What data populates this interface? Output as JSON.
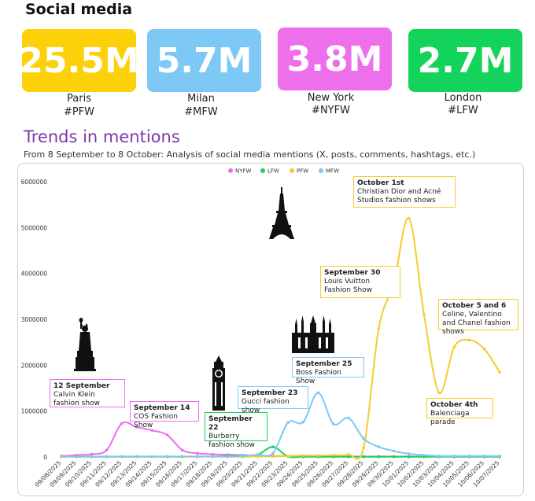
{
  "header": {
    "title": "Social media"
  },
  "tiles": [
    {
      "value": "25.5M",
      "city": "Paris",
      "tag": "#PFW",
      "color": "#FDD10A"
    },
    {
      "value": "5.7M",
      "city": "Milan",
      "tag": "#MFW",
      "color": "#7DC8F5"
    },
    {
      "value": "3.8M",
      "city": "New York",
      "tag": "#NYFW",
      "color": "#EE6FEC"
    },
    {
      "value": "2.7M",
      "city": "London",
      "tag": "#LFW",
      "color": "#14D35A"
    }
  ],
  "trends": {
    "title": "Trends in mentions",
    "subtitle": "From  8 September to 8 October: Analysis of social media mentions (X, posts, comments, hashtags, etc.)"
  },
  "annotations": [
    {
      "title": "12 September",
      "text": "Calvin Klein fashion show",
      "color": "#EE6FEC"
    },
    {
      "title": "September 14",
      "text": "COS Fashion Show",
      "color": "#EE6FEC"
    },
    {
      "title": "September 22",
      "text": "Burberry fashion show",
      "color": "#14D35A"
    },
    {
      "title": "September 23",
      "text": "Gucci fashion show",
      "color": "#7DC8F5"
    },
    {
      "title": "September 25",
      "text": "Boss Fashion Show",
      "color": "#7DC8F5"
    },
    {
      "title": "September 30",
      "text": "Louis Vuitton Fashion Show",
      "color": "#F5CC2E"
    },
    {
      "title": "October 1st",
      "text": "Christian Dior and Acné Studios fashion shows",
      "color": "#F5CC2E"
    },
    {
      "title": "October 5 and 6",
      "text": "Celine, Valentino and Chanel fashion shows",
      "color": "#F5CC2E"
    },
    {
      "title": "October 4th",
      "text": "Balenciaga parade",
      "color": "#F5CC2E"
    }
  ],
  "icons": [
    "eiffel-tower-icon",
    "statue-of-liberty-icon",
    "big-ben-icon",
    "milan-cathedral-icon"
  ],
  "chart_data": {
    "type": "line",
    "x": [
      "09/08/2025",
      "09/09/2025",
      "09/10/2025",
      "09/11/2025",
      "09/12/2025",
      "09/13/2025",
      "09/14/2025",
      "09/15/2025",
      "09/16/2025",
      "09/17/2025",
      "09/18/2025",
      "09/19/2025",
      "09/20/2025",
      "09/21/2025",
      "09/22/2025",
      "09/23/2025",
      "09/24/2025",
      "09/25/2025",
      "09/26/2025",
      "09/27/2025",
      "09/28/2025",
      "09/29/2025",
      "09/30/2025",
      "10/01/2025",
      "10/02/2025",
      "10/03/2025",
      "10/04/2025",
      "10/05/2025",
      "10/06/2025",
      "10/07/2025"
    ],
    "ylim": [
      0,
      6000000
    ],
    "yticks": [
      0,
      1000000,
      2000000,
      3000000,
      4000000,
      5000000,
      6000000
    ],
    "legend_position": "top",
    "grid": false,
    "series": [
      {
        "name": "NYFW",
        "color": "#EE6FEC",
        "values": [
          20000,
          40000,
          60000,
          150000,
          730000,
          650000,
          580000,
          480000,
          150000,
          80000,
          60000,
          50000,
          40000,
          30000,
          20000,
          20000,
          15000,
          15000,
          10000,
          10000,
          10000,
          10000,
          10000,
          10000,
          10000,
          10000,
          10000,
          10000,
          10000,
          10000
        ]
      },
      {
        "name": "LFW",
        "color": "#14D35A",
        "values": [
          5000,
          5000,
          5000,
          5000,
          5000,
          5000,
          5000,
          5000,
          5000,
          10000,
          10000,
          20000,
          30000,
          50000,
          220000,
          10000,
          5000,
          5000,
          5000,
          5000,
          5000,
          5000,
          5000,
          5000,
          5000,
          5000,
          5000,
          5000,
          5000,
          5000
        ]
      },
      {
        "name": "PFW",
        "color": "#F5CC2E",
        "values": [
          5000,
          5000,
          5000,
          5000,
          5000,
          5000,
          5000,
          5000,
          5000,
          5000,
          5000,
          5000,
          5000,
          10000,
          10000,
          20000,
          30000,
          30000,
          40000,
          50000,
          200000,
          2800000,
          3800000,
          5200000,
          3100000,
          1400000,
          2400000,
          2550000,
          2350000,
          1850000
        ]
      },
      {
        "name": "MFW",
        "color": "#7DC8F5",
        "values": [
          10000,
          10000,
          10000,
          10000,
          10000,
          10000,
          10000,
          10000,
          10000,
          10000,
          10000,
          10000,
          20000,
          50000,
          80000,
          750000,
          760000,
          1400000,
          720000,
          850000,
          400000,
          220000,
          130000,
          70000,
          40000,
          20000,
          20000,
          20000,
          20000,
          20000
        ]
      }
    ]
  }
}
